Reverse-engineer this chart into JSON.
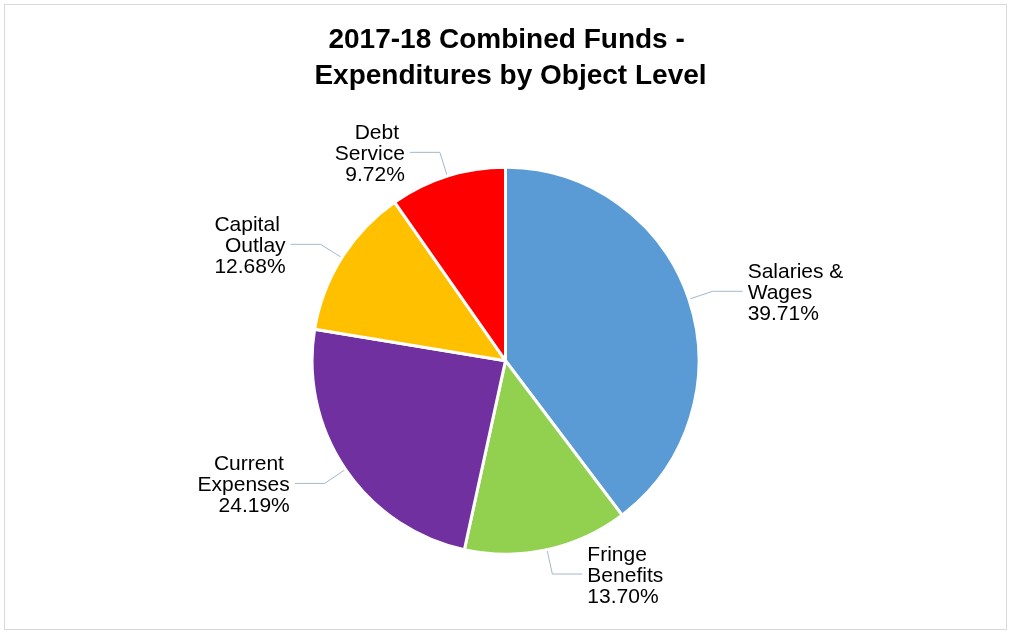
{
  "chart_data": {
    "type": "pie",
    "title": "2017-18 Combined Funds - Expenditures by Object Level",
    "categories": [
      "Salaries & Wages",
      "Fringe Benefits",
      "Current Expenses",
      "Capital Outlay",
      "Debt Service"
    ],
    "values": [
      39.71,
      13.7,
      24.19,
      12.68,
      9.72
    ],
    "value_labels": [
      "39.71%",
      "13.70%",
      "24.19%",
      "12.68%",
      "9.72%"
    ],
    "colors": [
      "#5b9bd5",
      "#92d050",
      "#7030a0",
      "#ffc000",
      "#ff0000"
    ],
    "legend": false
  }
}
